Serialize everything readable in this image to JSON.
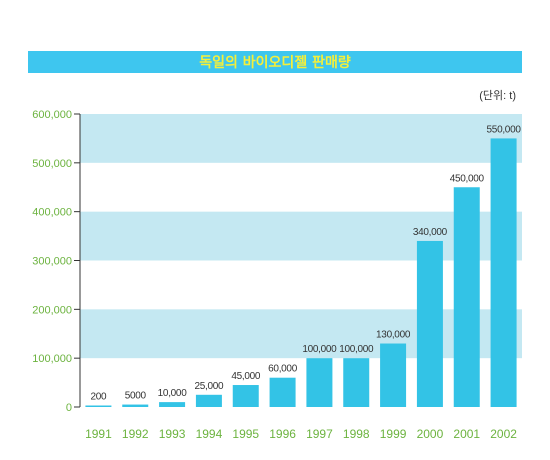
{
  "chart_data": {
    "type": "bar",
    "title": "독일의 바이오디젤 판매량",
    "unit_label": "(단위: t)",
    "categories": [
      "1991",
      "1992",
      "1993",
      "1994",
      "1995",
      "1996",
      "1997",
      "1998",
      "1999",
      "2000",
      "2001",
      "2002"
    ],
    "values": [
      200,
      5000,
      10000,
      25000,
      45000,
      60000,
      100000,
      100000,
      130000,
      340000,
      450000,
      550000
    ],
    "data_labels": [
      "200",
      "5000",
      "10,000",
      "25,000",
      "45,000",
      "60,000",
      "100,000",
      "100,000",
      "130,000",
      "340,000",
      "450,000",
      "550,000"
    ],
    "yticks": [
      0,
      100000,
      200000,
      300000,
      400000,
      500000,
      600000
    ],
    "ytick_labels": [
      "0",
      "100,000",
      "200,000",
      "300,000",
      "400,000",
      "500,000",
      "600,000"
    ],
    "ylim": [
      0,
      600000
    ],
    "xlabel": "",
    "ylabel": "",
    "colors": {
      "title_banner": "#3ec6ef",
      "title_text": "#f5ef3a",
      "bar": "#33c3e6",
      "band": "#c4e8f2",
      "axis_text": "#6cb33f",
      "label_text": "#333333"
    }
  }
}
